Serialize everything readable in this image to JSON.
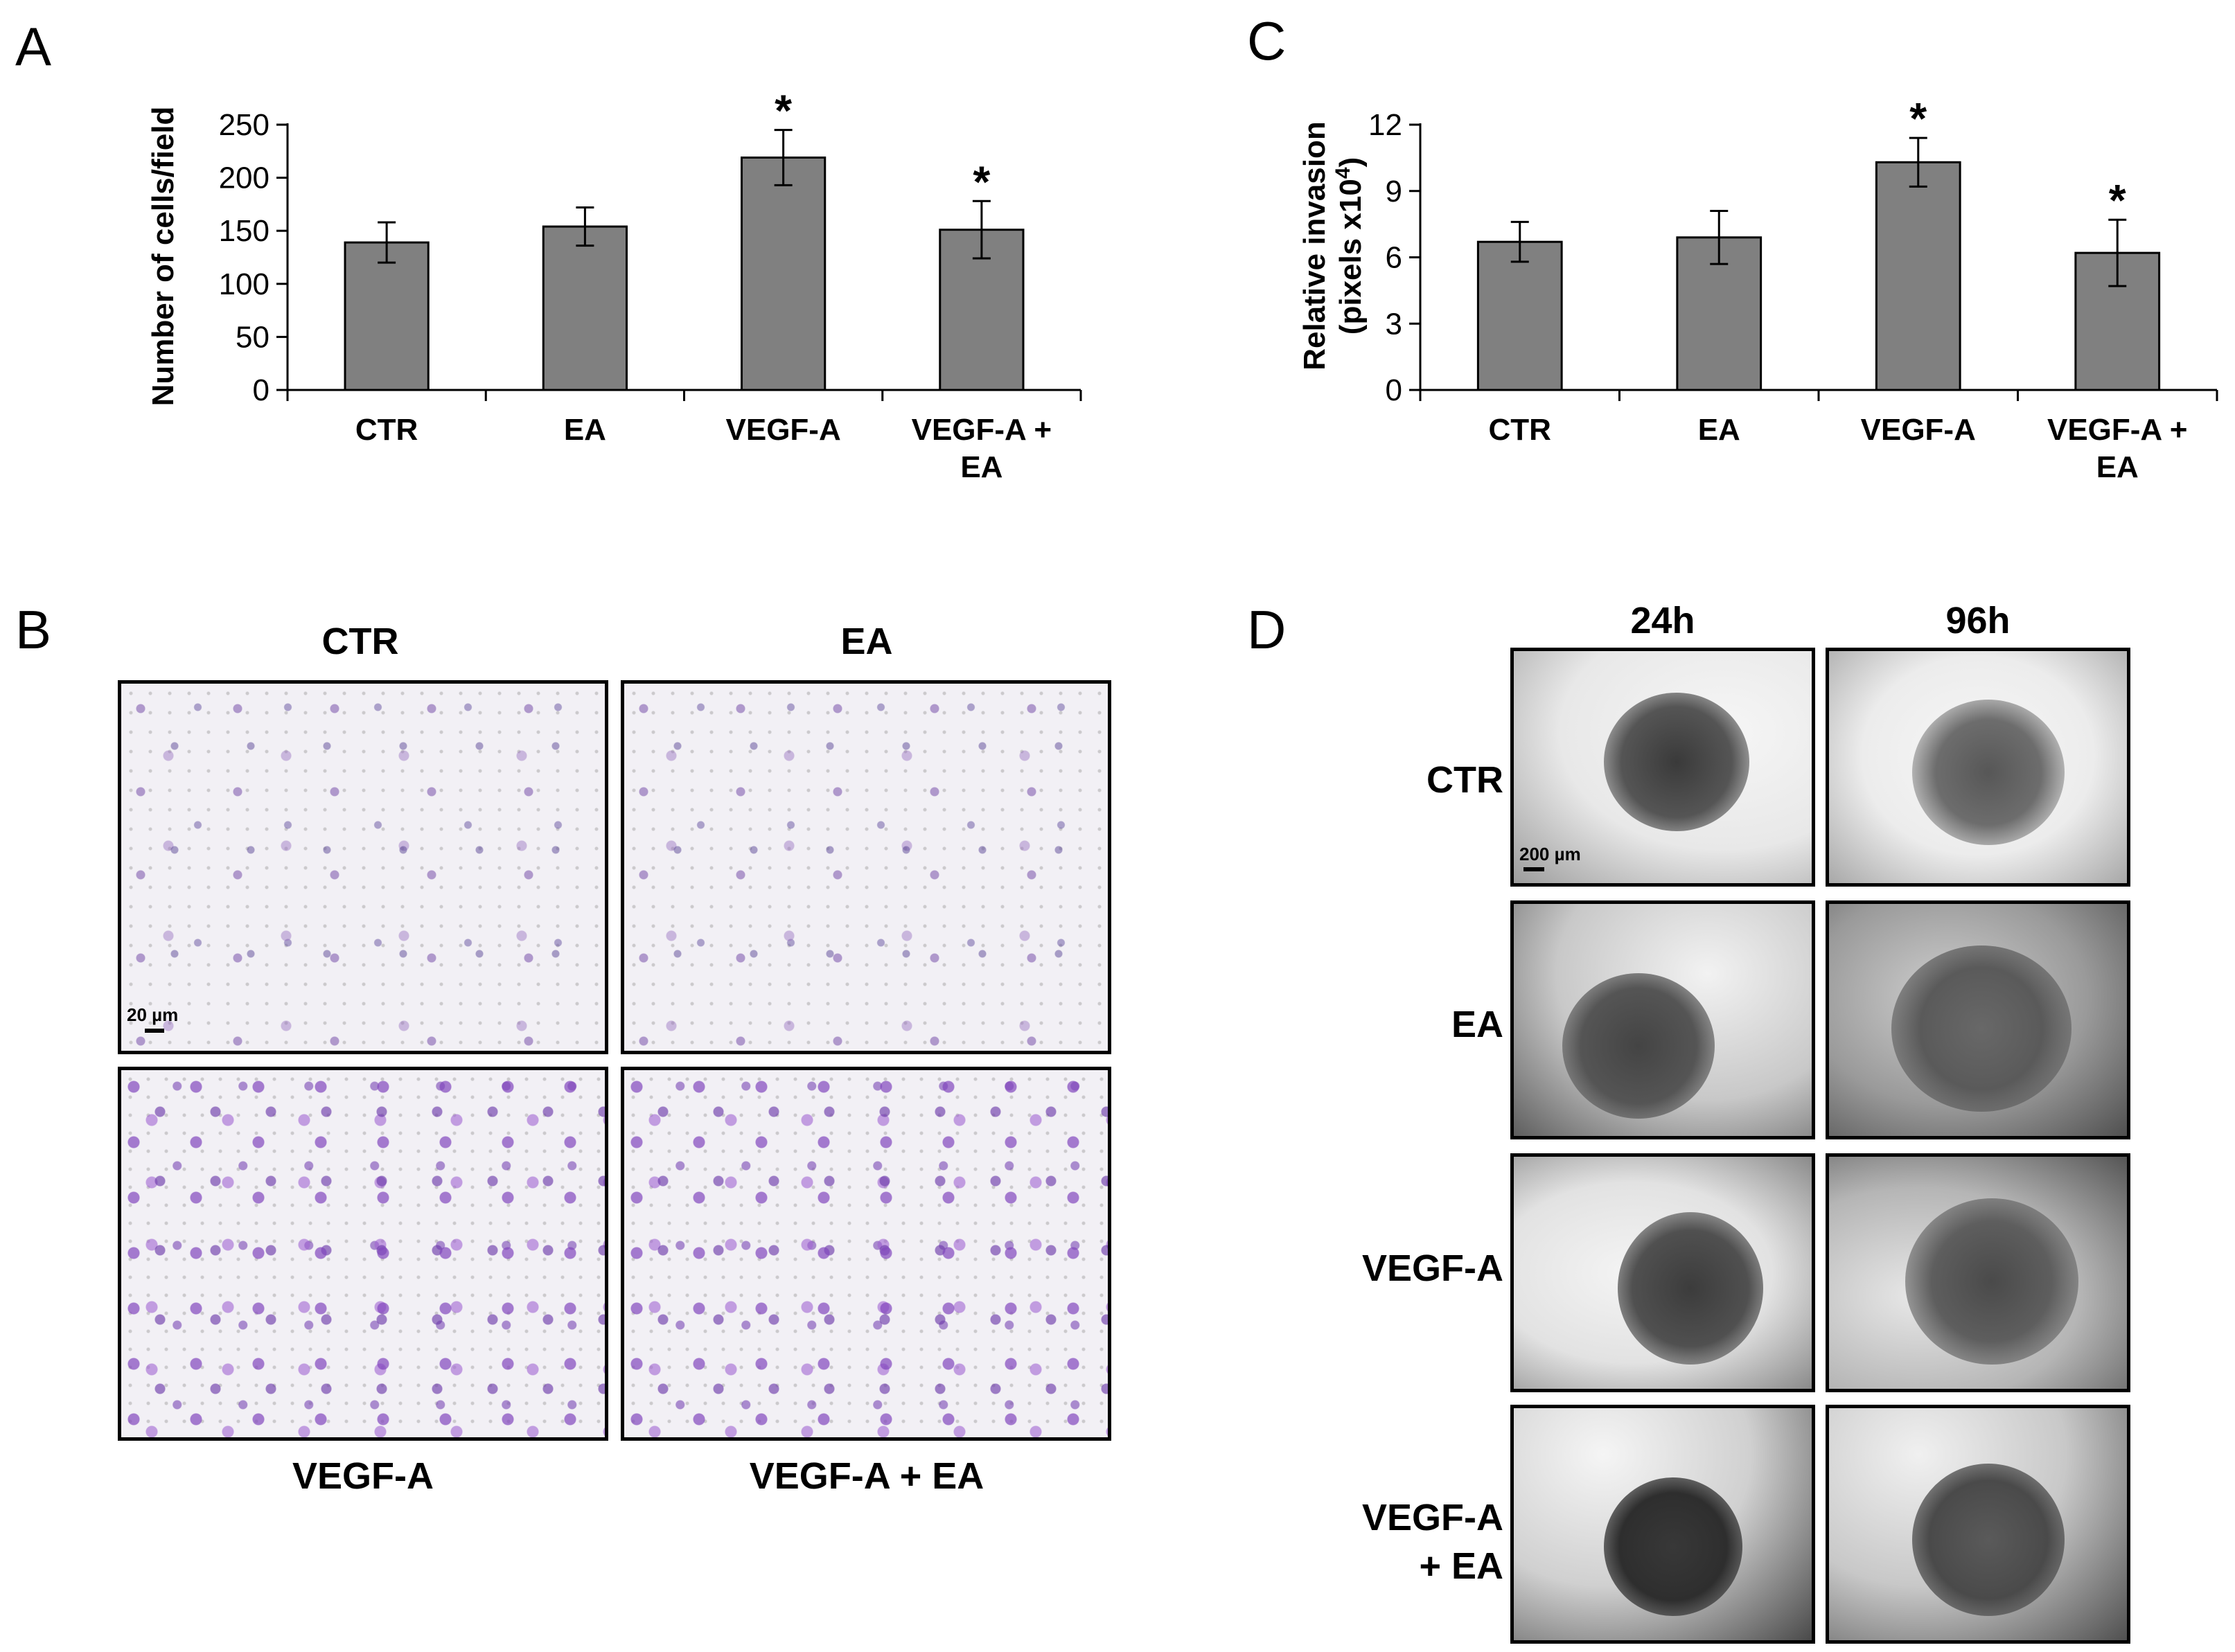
{
  "panels": {
    "a": {
      "letter": "A"
    },
    "b": {
      "letter": "B"
    },
    "c": {
      "letter": "C"
    },
    "d": {
      "letter": "D"
    }
  },
  "chart_data": [
    {
      "type": "bar",
      "panel": "A",
      "ylabel": "Number of cells/field",
      "xlabel": "",
      "categories": [
        "CTR",
        "EA",
        "VEGF-A",
        "VEGF-A + EA"
      ],
      "category_lines": [
        [
          "CTR"
        ],
        [
          "EA"
        ],
        [
          "VEGF-A"
        ],
        [
          "VEGF-A +",
          "EA"
        ]
      ],
      "values": [
        139,
        154,
        219,
        151
      ],
      "errors": [
        19,
        18,
        26,
        27
      ],
      "significance": [
        "",
        "",
        "*",
        "*"
      ],
      "ylim": [
        0,
        250
      ],
      "yticks": [
        0,
        50,
        100,
        150,
        200,
        250
      ],
      "bar_color": "#808080"
    },
    {
      "type": "bar",
      "panel": "C",
      "ylabel_lines": [
        "Relative invasion",
        "(pixels x10"
      ],
      "ylabel_sup": "4",
      "ylabel_tail": ")",
      "xlabel": "",
      "categories": [
        "CTR",
        "EA",
        "VEGF-A",
        "VEGF-A + EA"
      ],
      "category_lines": [
        [
          "CTR"
        ],
        [
          "EA"
        ],
        [
          "VEGF-A"
        ],
        [
          "VEGF-A +",
          "EA"
        ]
      ],
      "values": [
        6.7,
        6.9,
        10.3,
        6.2
      ],
      "errors": [
        0.9,
        1.2,
        1.1,
        1.5
      ],
      "significance": [
        "",
        "",
        "*",
        "*"
      ],
      "ylim": [
        0,
        12
      ],
      "yticks": [
        0,
        3,
        6,
        9,
        12
      ],
      "bar_color": "#808080"
    }
  ],
  "panel_b": {
    "images": [
      {
        "label": "CTR",
        "scale": "20 µm"
      },
      {
        "label": "EA"
      },
      {
        "label": "VEGF-A"
      },
      {
        "label": "VEGF-A + EA"
      }
    ]
  },
  "panel_d": {
    "columns": [
      "24h",
      "96h"
    ],
    "rows": [
      {
        "label_lines": [
          "CTR"
        ]
      },
      {
        "label_lines": [
          "EA"
        ]
      },
      {
        "label_lines": [
          "VEGF-A"
        ]
      },
      {
        "label_lines": [
          "VEGF-A",
          "+ EA"
        ]
      }
    ],
    "scale": "200 µm"
  }
}
